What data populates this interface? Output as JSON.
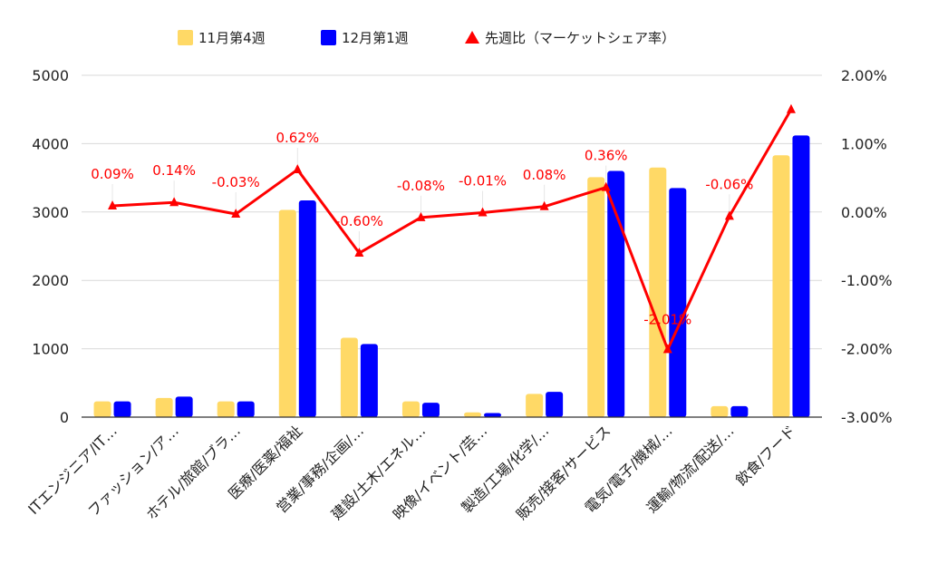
{
  "colors": {
    "series_1": "#ffd966",
    "series_2": "#0000ff",
    "line": "#ff0000",
    "grid": "#d9d9d9",
    "axis": "#333333",
    "text": "#222222"
  },
  "legend": {
    "placement": "top-center",
    "items": [
      {
        "label": "11月第4週",
        "marker": "square",
        "color": "#ffd966"
      },
      {
        "label": "12月第1週",
        "marker": "square",
        "color": "#0000ff"
      },
      {
        "label": "先週比（マーケットシェア率）",
        "marker": "triangle",
        "color": "#ff0000"
      }
    ]
  },
  "chart_data": {
    "type": "bar",
    "combo": "bar+line",
    "categories": [
      "ITエンジニア/IT…",
      "ファッション/ア…",
      "ホテル/旅館/ブラ…",
      "医療/医薬/福祉",
      "営業/事務/企画/…",
      "建設/土木/エネル…",
      "映像/イベント/芸…",
      "製造/工場/化学/…",
      "販売/接客/サービス",
      "電気/電子/機械/…",
      "運輸/物流/配送/…",
      "飲食/フード"
    ],
    "series": [
      {
        "name": "11月第4週",
        "type": "bar",
        "axis": "left",
        "color": "#ffd966",
        "values": [
          230,
          280,
          230,
          3030,
          1160,
          230,
          70,
          340,
          3510,
          3650,
          160,
          3830
        ]
      },
      {
        "name": "12月第1週",
        "type": "bar",
        "axis": "left",
        "color": "#0000ff",
        "values": [
          230,
          300,
          230,
          3170,
          1070,
          210,
          60,
          370,
          3600,
          3350,
          160,
          4120
        ]
      },
      {
        "name": "先週比（マーケットシェア率）",
        "type": "line",
        "axis": "right",
        "color": "#ff0000",
        "values": [
          0.09,
          0.14,
          -0.03,
          0.62,
          -0.6,
          -0.08,
          -0.01,
          0.08,
          0.36,
          -2.01,
          -0.06,
          1.5
        ],
        "labels": [
          "0.09%",
          "0.14%",
          "-0.03%",
          "0.62%",
          "-0.60%",
          "-0.08%",
          "-0.01%",
          "0.08%",
          "0.36%",
          "-2.01%",
          "-0.06%",
          ""
        ]
      }
    ],
    "y_left": {
      "min": 0,
      "max": 5000,
      "ticks": [
        "0",
        "1000",
        "2000",
        "3000",
        "4000",
        "5000"
      ]
    },
    "y_right": {
      "min": -3,
      "max": 2,
      "ticks": [
        "-3.00%",
        "-2.00%",
        "-1.00%",
        "0.00%",
        "1.00%",
        "2.00%"
      ]
    },
    "grid": true
  }
}
